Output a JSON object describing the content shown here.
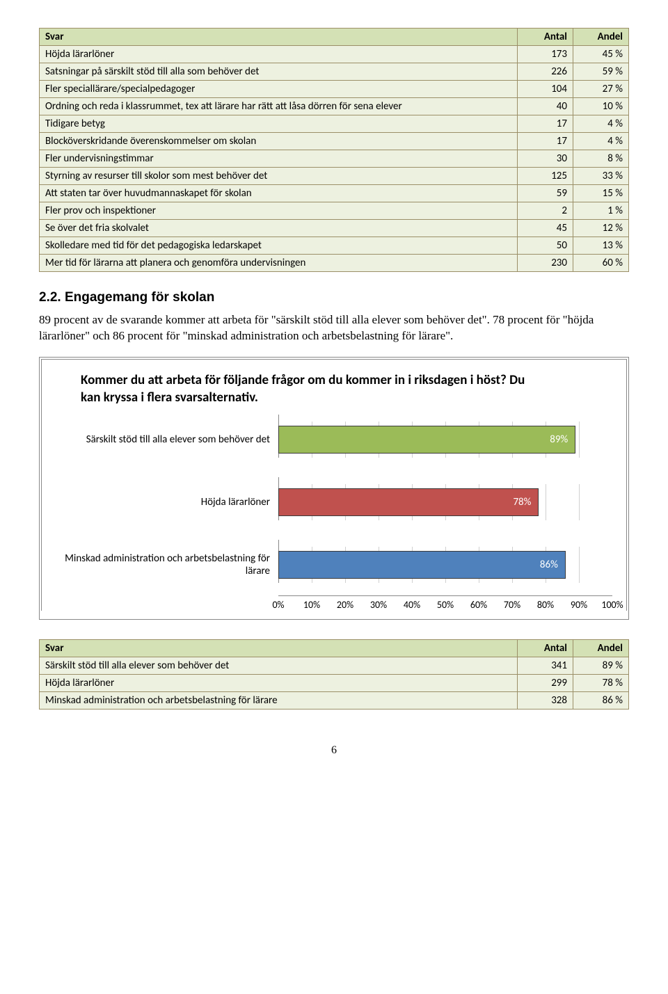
{
  "table1": {
    "headers": [
      "Svar",
      "Antal",
      "Andel"
    ],
    "rows": [
      [
        "Höjda lärarlöner",
        "173",
        "45 %"
      ],
      [
        "Satsningar på särskilt stöd till alla som behöver det",
        "226",
        "59 %"
      ],
      [
        "Fler speciallärare/specialpedagoger",
        "104",
        "27 %"
      ],
      [
        "Ordning och reda i klassrummet, tex att lärare har rätt att låsa dörren för sena elever",
        "40",
        "10 %"
      ],
      [
        "Tidigare betyg",
        "17",
        "4 %"
      ],
      [
        "Blocköverskridande överenskommelser om skolan",
        "17",
        "4 %"
      ],
      [
        "Fler undervisningstimmar",
        "30",
        "8 %"
      ],
      [
        "Styrning av resurser till skolor som mest behöver det",
        "125",
        "33 %"
      ],
      [
        "Att staten tar över huvudmannaskapet för skolan",
        "59",
        "15 %"
      ],
      [
        "Fler prov och inspektioner",
        "2",
        "1 %"
      ],
      [
        "Se över det fria skolvalet",
        "45",
        "12 %"
      ],
      [
        "Skolledare med tid för det pedagogiska ledarskapet",
        "50",
        "13 %"
      ],
      [
        "Mer tid för lärarna att planera och genomföra undervisningen",
        "230",
        "60 %"
      ]
    ]
  },
  "section": {
    "heading": "2.2.  Engagemang för skolan",
    "para": "89 procent av de svarande kommer att arbeta för \"särskilt stöd till alla elever som behöver det\". 78 procent för \"höjda lärarlöner\" och 86 procent för \"minskad administration och arbetsbelastning för lärare\"."
  },
  "chart": {
    "title": "Kommer du att arbeta för följande frågor om du kommer in i riksdagen i höst? Du kan kryssa i flera svarsalternativ.",
    "bars": [
      {
        "label": "Särskilt stöd till alla elever som behöver det",
        "value": 89,
        "text": "89%",
        "color": "#9bbb58"
      },
      {
        "label": "Höjda lärarlöner",
        "value": 78,
        "text": "78%",
        "color": "#c0514e"
      },
      {
        "label": "Minskad administration och arbetsbelastning för lärare",
        "value": 86,
        "text": "86%",
        "color": "#4f81bc"
      }
    ],
    "ticks": [
      "0%",
      "10%",
      "20%",
      "30%",
      "40%",
      "50%",
      "60%",
      "70%",
      "80%",
      "90%",
      "100%"
    ]
  },
  "table2": {
    "headers": [
      "Svar",
      "Antal",
      "Andel"
    ],
    "rows": [
      [
        "Särskilt stöd till alla elever som behöver det",
        "341",
        "89 %"
      ],
      [
        "Höjda lärarlöner",
        "299",
        "78 %"
      ],
      [
        "Minskad administration och arbetsbelastning för lärare",
        "328",
        "86 %"
      ]
    ]
  },
  "page_number": "6"
}
